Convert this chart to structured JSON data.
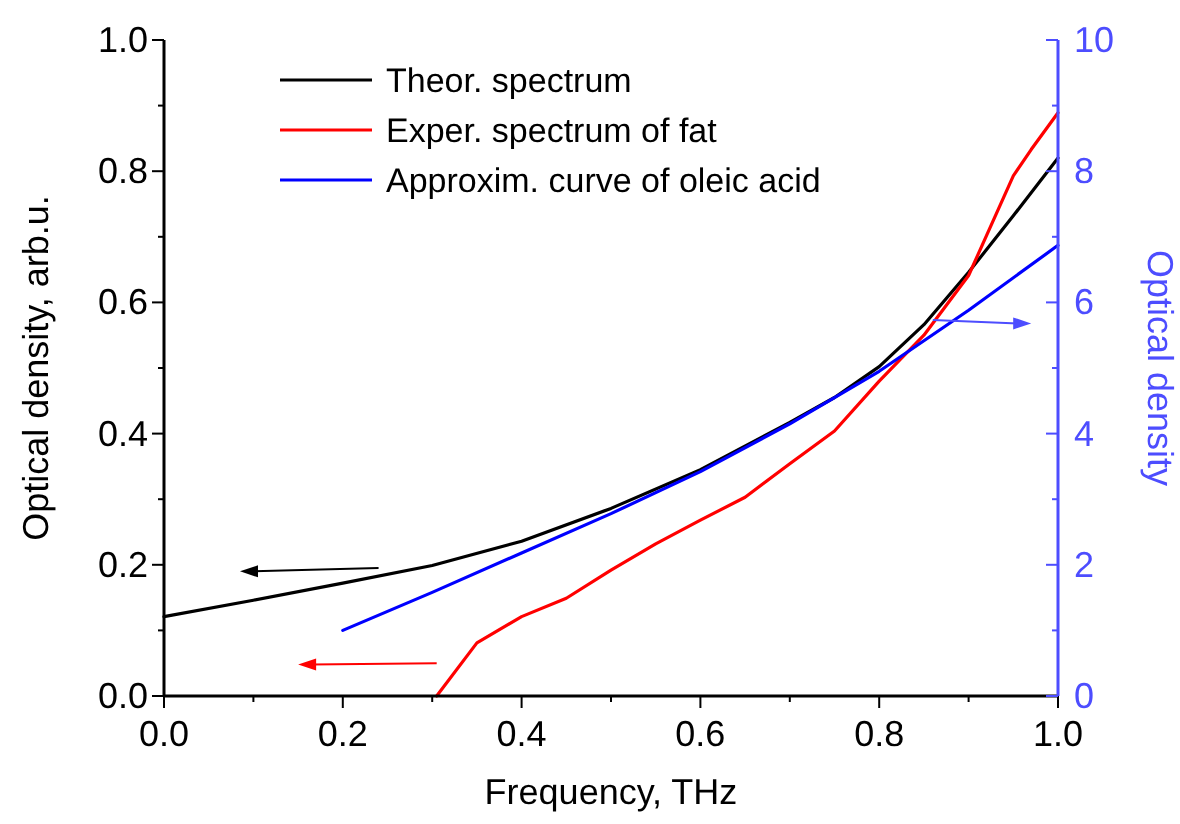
{
  "chart_data": {
    "type": "line",
    "xlabel": "Frequency, THz",
    "ylabel": "Optical density, arb.u.",
    "y2label": "Optical density",
    "xlim": [
      0,
      1
    ],
    "xticks": [
      {
        "value": 0,
        "label": "0.0"
      },
      {
        "value": 0.1,
        "label": null
      },
      {
        "value": 0.2,
        "label": "0.2"
      },
      {
        "value": 0.3,
        "label": null
      },
      {
        "value": 0.4,
        "label": "0.4"
      },
      {
        "value": 0.5,
        "label": null
      },
      {
        "value": 0.6,
        "label": "0.6"
      },
      {
        "value": 0.7,
        "label": null
      },
      {
        "value": 0.8,
        "label": "0.8"
      },
      {
        "value": 0.9,
        "label": null
      },
      {
        "value": 1,
        "label": "1.0"
      }
    ],
    "ylim": [
      0,
      1
    ],
    "yticks": [
      {
        "value": 0,
        "label": "0.0"
      },
      {
        "value": 0.1,
        "label": null
      },
      {
        "value": 0.2,
        "label": "0.2"
      },
      {
        "value": 0.3,
        "label": null
      },
      {
        "value": 0.4,
        "label": "0.4"
      },
      {
        "value": 0.5,
        "label": null
      },
      {
        "value": 0.6,
        "label": "0.6"
      },
      {
        "value": 0.7,
        "label": null
      },
      {
        "value": 0.8,
        "label": "0.8"
      },
      {
        "value": 0.9,
        "label": null
      },
      {
        "value": 1,
        "label": "1.0"
      }
    ],
    "y2lim": [
      0,
      10
    ],
    "y2ticks": [
      0,
      {
        "value": 1,
        "label": null
      },
      2,
      {
        "value": 3,
        "label": null
      },
      4,
      {
        "value": 5,
        "label": null
      },
      6,
      {
        "value": 7,
        "label": null
      },
      8,
      {
        "value": 9,
        "label": null
      },
      10
    ],
    "legend": "top left",
    "grid": false,
    "line_style": "solid",
    "marker": "none",
    "series": [
      {
        "name": "Theor. spectrum",
        "color": "#000000",
        "x": [
          0,
          0.1,
          0.2,
          0.3,
          0.4,
          0.5,
          0.6,
          0.7,
          0.75,
          0.8,
          0.85,
          0.9,
          0.95,
          1.0
        ],
        "values": [
          0.121,
          0.146,
          0.172,
          0.199,
          0.236,
          0.286,
          0.345,
          0.417,
          0.455,
          0.502,
          0.566,
          0.646,
          0.732,
          0.82
        ]
      },
      {
        "name": "Exper. spectrum of fat",
        "color": "#ff0000",
        "x": [
          0.305,
          0.35,
          0.4,
          0.45,
          0.5,
          0.55,
          0.6,
          0.65,
          0.7,
          0.75,
          0.8,
          0.85,
          0.9,
          0.95,
          0.97,
          1.0
        ],
        "values": [
          0,
          0.081,
          0.121,
          0.149,
          0.192,
          0.232,
          0.268,
          0.303,
          0.354,
          0.404,
          0.48,
          0.55,
          0.641,
          0.793,
          0.833,
          0.889
        ]
      },
      {
        "name": "Approxim. curve of oleic acid",
        "color": "#0000ff",
        "axis": "y2",
        "x": [
          0.2,
          0.3,
          0.4,
          0.5,
          0.6,
          0.7,
          0.8,
          0.9,
          1.0
        ],
        "values": [
          1.0,
          1.58,
          2.18,
          2.78,
          3.42,
          4.15,
          4.95,
          5.88,
          6.87
        ]
      }
    ]
  }
}
